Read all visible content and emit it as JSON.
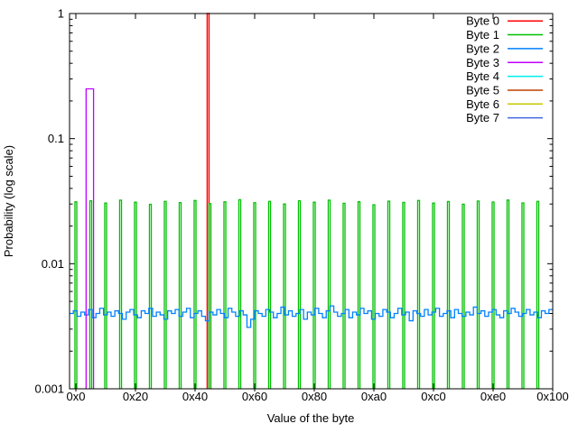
{
  "figure": {
    "background": "#ffffff",
    "border_color": "#000000",
    "text_color": "#000000"
  },
  "chart_data": {
    "type": "line",
    "plot_style": "histeps (hollow step histogram), gnuplot-style",
    "title": "",
    "x_axis": {
      "label": "Value of the byte",
      "range": [
        0,
        256
      ],
      "ticks": [
        "0x0",
        "0x20",
        "0x40",
        "0x60",
        "0x80",
        "0xa0",
        "0xc0",
        "0xe0",
        "0x100"
      ],
      "tick_values": [
        0,
        32,
        64,
        96,
        128,
        160,
        192,
        224,
        256
      ]
    },
    "y_axis": {
      "label": "Probability (log scale)",
      "scale": "log",
      "range": [
        0.001,
        1
      ],
      "ticks": [
        "1",
        "0.1",
        "0.01",
        "0.001"
      ],
      "tick_values": [
        1,
        0.1,
        0.01,
        0.001
      ],
      "minor_tick_decades": [
        0.001,
        0.01,
        0.1
      ]
    },
    "legend": {
      "position": "top-right-inside",
      "entries": [
        "Byte 0",
        "Byte 1",
        "Byte 2",
        "Byte 3",
        "Byte 4",
        "Byte 5",
        "Byte 6",
        "Byte 7"
      ]
    },
    "series": [
      {
        "name": "Byte 0",
        "color": "#ff0000",
        "visible": true,
        "shape": "spike",
        "spike": {
          "value": 71,
          "value_hex": "0x47",
          "probability": 1.0
        }
      },
      {
        "name": "Byte 1",
        "color": "#00c000",
        "visible": true,
        "shape": "comb",
        "comb": {
          "start": 0,
          "step": 8,
          "count": 32,
          "mean_probability": 0.03125,
          "probabilities": [
            0.0312,
            0.0318,
            0.0305,
            0.0322,
            0.031,
            0.0298,
            0.0315,
            0.0308,
            0.032,
            0.0302,
            0.0312,
            0.0325,
            0.0307,
            0.0315,
            0.03,
            0.0318,
            0.031,
            0.0322,
            0.0304,
            0.0313,
            0.0296,
            0.0316,
            0.0309,
            0.032,
            0.0305,
            0.0314,
            0.0299,
            0.0317,
            0.0311,
            0.0323,
            0.0306,
            0.0315
          ]
        }
      },
      {
        "name": "Byte 2",
        "color": "#0080ff",
        "visible": true,
        "shape": "noise",
        "noise": {
          "mean_probability": 0.004,
          "values_per_step": 2,
          "values": [
            0.004,
            0.0042,
            0.0038,
            0.0041,
            0.0039,
            0.0043,
            0.0037,
            0.004,
            0.0044,
            0.0039,
            0.0041,
            0.0038,
            0.0042,
            0.004,
            0.0036,
            0.0041,
            0.0043,
            0.0039,
            0.0037,
            0.0042,
            0.004,
            0.0044,
            0.0038,
            0.0041,
            0.0039,
            0.0036,
            0.0042,
            0.004,
            0.0043,
            0.0038,
            0.0041,
            0.0044,
            0.0037,
            0.004,
            0.0042,
            0.0038,
            0.0035,
            0.0041,
            0.0039,
            0.0043,
            0.004,
            0.0037,
            0.0044,
            0.0041,
            0.0038,
            0.0042,
            0.0039,
            0.0031,
            0.0036,
            0.0042,
            0.004,
            0.0038,
            0.0043,
            0.0041,
            0.0037,
            0.004,
            0.0045,
            0.0039,
            0.0042,
            0.0038,
            0.004,
            0.0043,
            0.0036,
            0.0041,
            0.0039,
            0.0044,
            0.004,
            0.0037,
            0.0042,
            0.0046,
            0.0041,
            0.0038,
            0.004,
            0.0043,
            0.0037,
            0.0041,
            0.0039,
            0.0044,
            0.004,
            0.0042,
            0.0036,
            0.004,
            0.0038,
            0.0043,
            0.0041,
            0.0037,
            0.004,
            0.0044,
            0.0039,
            0.0041,
            0.0035,
            0.0042,
            0.004,
            0.0038,
            0.0043,
            0.0039,
            0.0041,
            0.0044,
            0.0038,
            0.004,
            0.0042,
            0.0037,
            0.0043,
            0.004,
            0.0038,
            0.0041,
            0.0039,
            0.0045,
            0.004,
            0.0042,
            0.0038,
            0.0041,
            0.0043,
            0.0039,
            0.0037,
            0.0042,
            0.004,
            0.0044,
            0.0041,
            0.0038,
            0.004,
            0.0043,
            0.0039,
            0.0041,
            0.0037,
            0.0042,
            0.004,
            0.0043
          ]
        }
      },
      {
        "name": "Byte 3",
        "color": "#c000ff",
        "visible": true,
        "shape": "block",
        "block": {
          "from": 6,
          "to": 9,
          "from_hex": "0x06",
          "to_hex": "0x09",
          "probability": 0.25
        }
      },
      {
        "name": "Byte 4",
        "color": "#00eeee",
        "visible": false
      },
      {
        "name": "Byte 5",
        "color": "#c04000",
        "visible": false
      },
      {
        "name": "Byte 6",
        "color": "#c8c800",
        "visible": false
      },
      {
        "name": "Byte 7",
        "color": "#4169e1",
        "visible": false
      }
    ]
  }
}
